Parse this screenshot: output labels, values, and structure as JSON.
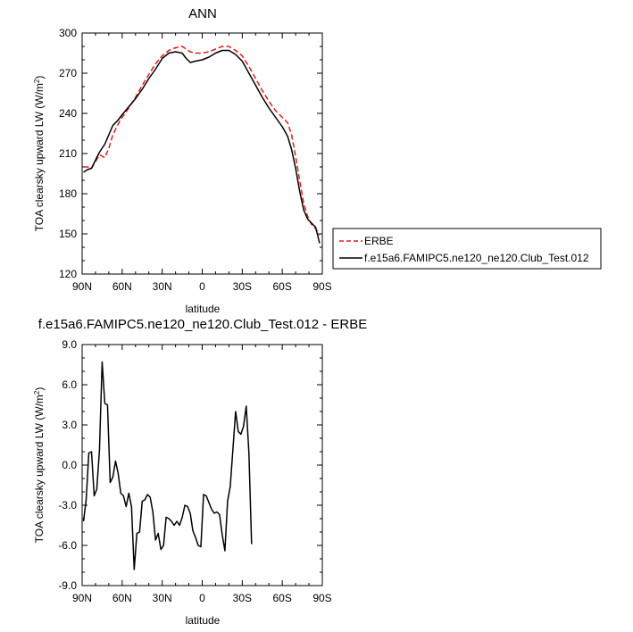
{
  "chart_data": [
    {
      "type": "line",
      "title": "ANN",
      "xlabel": "latitude",
      "ylabel": "TOA clearsky upward LW (W/m",
      "ylabel_sup": "2",
      "ylabel_end": ")",
      "xlim": [
        90,
        -90
      ],
      "ylim": [
        120,
        300
      ],
      "x_ticks": [
        90,
        60,
        30,
        0,
        -30,
        -60,
        -90
      ],
      "x_tick_labels": [
        "90N",
        "60N",
        "30N",
        "0",
        "30S",
        "60S",
        "90S"
      ],
      "y_ticks": [
        120,
        150,
        180,
        210,
        240,
        270,
        300
      ],
      "y_tick_labels": [
        "120",
        "150",
        "180",
        "210",
        "240",
        "270",
        "300"
      ],
      "grid": false,
      "legend_position": "right",
      "series": [
        {
          "name": "ERBE",
          "color": "#e41a1c",
          "dash": "dashed",
          "points": [
            [
              89,
              200
            ],
            [
              86,
              200
            ],
            [
              83,
              199
            ],
            [
              80,
              204
            ],
            [
              77,
              209
            ],
            [
              73,
              207
            ],
            [
              70,
              214
            ],
            [
              67,
              224
            ],
            [
              63,
              232
            ],
            [
              60,
              237
            ],
            [
              55,
              244
            ],
            [
              50,
              252
            ],
            [
              45,
              261
            ],
            [
              40,
              269
            ],
            [
              35,
              277
            ],
            [
              30,
              283
            ],
            [
              25,
              287
            ],
            [
              20,
              289
            ],
            [
              15,
              290
            ],
            [
              12,
              288
            ],
            [
              9,
              286
            ],
            [
              5,
              285
            ],
            [
              0,
              285
            ],
            [
              -5,
              286
            ],
            [
              -10,
              288
            ],
            [
              -15,
              290
            ],
            [
              -20,
              290
            ],
            [
              -25,
              287
            ],
            [
              -30,
              283
            ],
            [
              -35,
              275
            ],
            [
              -40,
              266
            ],
            [
              -45,
              257
            ],
            [
              -50,
              249
            ],
            [
              -55,
              242
            ],
            [
              -60,
              237
            ],
            [
              -64,
              233
            ],
            [
              -67,
              224
            ],
            [
              -70,
              208
            ],
            [
              -73,
              190
            ],
            [
              -76,
              173
            ],
            [
              -79,
              163
            ],
            [
              -82,
              157
            ],
            [
              -85,
              154
            ],
            [
              -88,
              149
            ]
          ]
        },
        {
          "name": "f.e15a6.FAMIPC5.ne120_ne120.Club_Test.012",
          "color": "#000000",
          "dash": "solid",
          "points": [
            [
              89,
              196
            ],
            [
              86,
              198
            ],
            [
              83,
              199
            ],
            [
              80,
              205
            ],
            [
              77,
              211
            ],
            [
              73,
              217
            ],
            [
              70,
              224
            ],
            [
              67,
              231
            ],
            [
              63,
              235
            ],
            [
              60,
              239
            ],
            [
              55,
              245
            ],
            [
              50,
              251
            ],
            [
              45,
              258
            ],
            [
              40,
              266
            ],
            [
              35,
              273
            ],
            [
              30,
              281
            ],
            [
              25,
              285
            ],
            [
              20,
              286
            ],
            [
              15,
              285
            ],
            [
              12,
              281
            ],
            [
              9,
              278
            ],
            [
              5,
              279
            ],
            [
              0,
              280
            ],
            [
              -5,
              282
            ],
            [
              -10,
              285
            ],
            [
              -15,
              287
            ],
            [
              -20,
              287
            ],
            [
              -25,
              284
            ],
            [
              -30,
              279
            ],
            [
              -35,
              270
            ],
            [
              -40,
              261
            ],
            [
              -45,
              252
            ],
            [
              -50,
              244
            ],
            [
              -55,
              237
            ],
            [
              -60,
              230
            ],
            [
              -64,
              223
            ],
            [
              -67,
              213
            ],
            [
              -70,
              199
            ],
            [
              -73,
              182
            ],
            [
              -76,
              168
            ],
            [
              -79,
              161
            ],
            [
              -82,
              158
            ],
            [
              -85,
              155
            ],
            [
              -88,
              143
            ]
          ]
        }
      ]
    },
    {
      "type": "line",
      "title": "f.e15a6.FAMIPC5.ne120_ne120.Club_Test.012 - ERBE",
      "xlabel": "latitude",
      "ylabel": "TOA clearsky upward LW (W/m",
      "ylabel_sup": "2",
      "ylabel_end": ")",
      "xlim": [
        90,
        -90
      ],
      "ylim": [
        -9,
        9
      ],
      "x_ticks": [
        90,
        60,
        30,
        0,
        -30,
        -60,
        -90
      ],
      "x_tick_labels": [
        "90N",
        "60N",
        "30N",
        "0",
        "30S",
        "60S",
        "90S"
      ],
      "y_ticks": [
        -9,
        -6,
        -3,
        0,
        3,
        6,
        9
      ],
      "y_tick_labels": [
        "-9.0",
        "-6.0",
        "-3.0",
        "0.0",
        "3.0",
        "6.0",
        "9.0"
      ],
      "grid": false,
      "series": [
        {
          "color": "#000000",
          "dash": "solid",
          "points": [
            [
              89,
              -4.2
            ],
            [
              87,
              -2.6
            ],
            [
              85,
              0.9
            ],
            [
              83,
              1.0
            ],
            [
              81,
              -2.3
            ],
            [
              79,
              -1.8
            ],
            [
              77,
              1.1
            ],
            [
              75,
              7.7
            ],
            [
              73,
              4.6
            ],
            [
              71,
              4.5
            ],
            [
              69,
              -1.3
            ],
            [
              67,
              -0.9
            ],
            [
              65,
              0.3
            ],
            [
              63,
              -0.6
            ],
            [
              61,
              -2.1
            ],
            [
              59,
              -2.3
            ],
            [
              57,
              -3.1
            ],
            [
              55,
              -2.1
            ],
            [
              53,
              -3.1
            ],
            [
              51,
              -7.8
            ],
            [
              49,
              -5.1
            ],
            [
              47,
              -5.0
            ],
            [
              45,
              -2.7
            ],
            [
              43,
              -2.6
            ],
            [
              41,
              -2.2
            ],
            [
              39,
              -2.4
            ],
            [
              37,
              -3.5
            ],
            [
              35,
              -5.6
            ],
            [
              33,
              -5.1
            ],
            [
              31,
              -6.3
            ],
            [
              29,
              -6.0
            ],
            [
              27,
              -3.9
            ],
            [
              25,
              -4.0
            ],
            [
              23,
              -4.2
            ],
            [
              21,
              -4.5
            ],
            [
              19,
              -4.2
            ],
            [
              17,
              -4.5
            ],
            [
              15,
              -3.9
            ],
            [
              13,
              -3.0
            ],
            [
              11,
              -3.1
            ],
            [
              9,
              -3.6
            ],
            [
              7,
              -4.9
            ],
            [
              5,
              -5.4
            ],
            [
              3,
              -6.0
            ],
            [
              1,
              -6.1
            ],
            [
              -1,
              -2.2
            ],
            [
              -3,
              -2.3
            ],
            [
              -5,
              -2.8
            ],
            [
              -7,
              -3.3
            ],
            [
              -9,
              -3.6
            ],
            [
              -11,
              -3.5
            ],
            [
              -13,
              -3.7
            ],
            [
              -15,
              -5.2
            ],
            [
              -17,
              -6.4
            ],
            [
              -19,
              -2.7
            ],
            [
              -21,
              -1.6
            ],
            [
              -23,
              1.2
            ],
            [
              -25,
              4.0
            ],
            [
              -27,
              2.5
            ],
            [
              -29,
              2.3
            ],
            [
              -31,
              2.9
            ],
            [
              -33,
              4.4
            ],
            [
              -35,
              0.9
            ],
            [
              -37,
              -5.9
            ]
          ]
        }
      ]
    }
  ]
}
